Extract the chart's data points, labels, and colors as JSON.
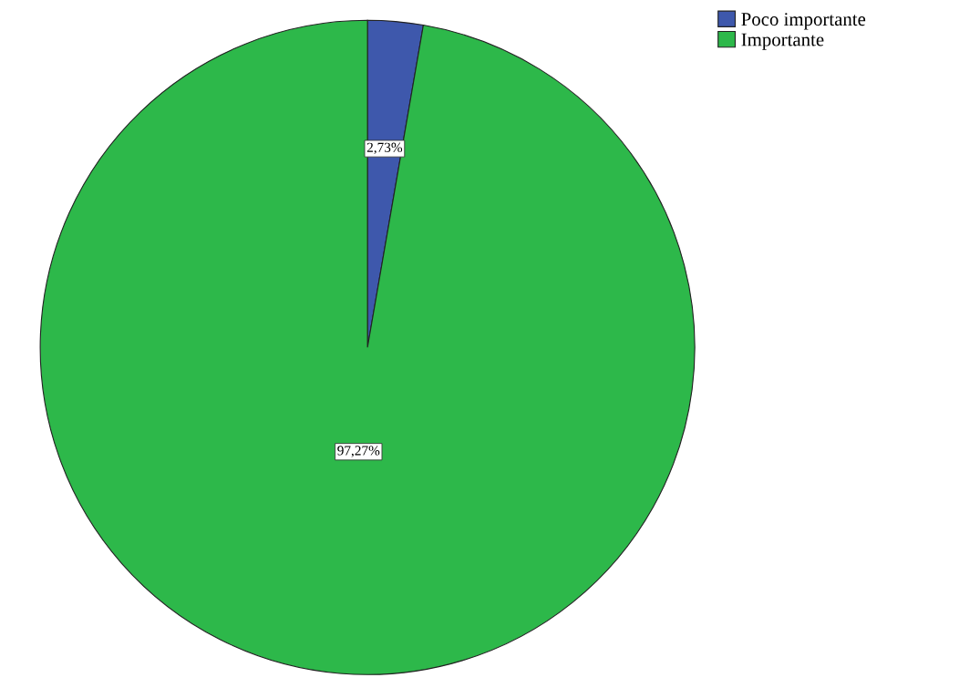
{
  "chart_data": {
    "type": "pie",
    "categories": [
      "Poco importante",
      "Importante"
    ],
    "values": [
      2.73,
      97.27
    ],
    "value_labels": [
      "2,73%",
      "97,27%"
    ],
    "colors": [
      "#3e58ac",
      "#2db84a"
    ],
    "legend": "top right"
  }
}
